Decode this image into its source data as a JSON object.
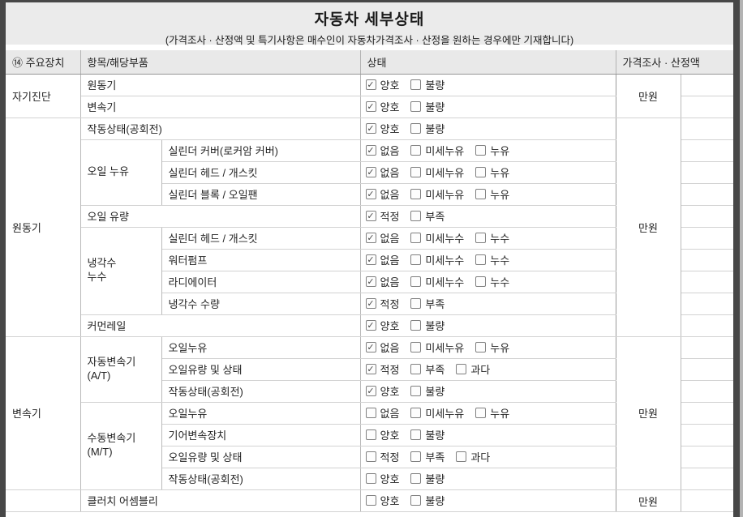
{
  "title": "자동차 세부상태",
  "subtitle": "(가격조사 · 산정액 및 특기사항은 매수인이 자동차가격조사 · 산정을 원하는 경우에만 기재합니다)",
  "colors": {
    "outer_border": "#474747",
    "band_bg": "#ebebeb",
    "grid_line": "#d2d2d2"
  },
  "table": {
    "header": {
      "device": "⑭ 주요장치",
      "item": "항목/해당부품",
      "status": "상태",
      "price": "가격조사 · 산정액"
    },
    "price_unit": "만원",
    "sections": [
      {
        "name": "자기진단",
        "price": "만원",
        "rows": [
          {
            "item": "원동기",
            "options": [
              {
                "label": "양호",
                "checked": true
              },
              {
                "label": "불량",
                "checked": false
              }
            ]
          },
          {
            "item": "변속기",
            "options": [
              {
                "label": "양호",
                "checked": true
              },
              {
                "label": "불량",
                "checked": false
              }
            ]
          }
        ]
      },
      {
        "name": "원동기",
        "price": "만원",
        "rows": [
          {
            "item": "작동상태(공회전)",
            "options": [
              {
                "label": "양호",
                "checked": true
              },
              {
                "label": "불량",
                "checked": false
              }
            ]
          },
          {
            "group": "오일 누유",
            "item": "실린더 커버(로커암 커버)",
            "options": [
              {
                "label": "없음",
                "checked": true
              },
              {
                "label": "미세누유",
                "checked": false
              },
              {
                "label": "누유",
                "checked": false
              }
            ]
          },
          {
            "group": "오일 누유",
            "item": "실린더 헤드 / 개스킷",
            "options": [
              {
                "label": "없음",
                "checked": true
              },
              {
                "label": "미세누유",
                "checked": false
              },
              {
                "label": "누유",
                "checked": false
              }
            ]
          },
          {
            "group": "오일 누유",
            "item": "실린더 블록 / 오일팬",
            "options": [
              {
                "label": "없음",
                "checked": true
              },
              {
                "label": "미세누유",
                "checked": false
              },
              {
                "label": "누유",
                "checked": false
              }
            ]
          },
          {
            "item": "오일 유량",
            "options": [
              {
                "label": "적정",
                "checked": true
              },
              {
                "label": "부족",
                "checked": false
              }
            ]
          },
          {
            "group": "냉각수\n누수",
            "item": "실린더 헤드 / 개스킷",
            "options": [
              {
                "label": "없음",
                "checked": true
              },
              {
                "label": "미세누수",
                "checked": false
              },
              {
                "label": "누수",
                "checked": false
              }
            ]
          },
          {
            "group": "냉각수\n누수",
            "item": "워터펌프",
            "options": [
              {
                "label": "없음",
                "checked": true
              },
              {
                "label": "미세누수",
                "checked": false
              },
              {
                "label": "누수",
                "checked": false
              }
            ]
          },
          {
            "group": "냉각수\n누수",
            "item": "라디에이터",
            "options": [
              {
                "label": "없음",
                "checked": true
              },
              {
                "label": "미세누수",
                "checked": false
              },
              {
                "label": "누수",
                "checked": false
              }
            ]
          },
          {
            "group": "냉각수\n누수",
            "item": "냉각수 수량",
            "options": [
              {
                "label": "적정",
                "checked": true
              },
              {
                "label": "부족",
                "checked": false
              }
            ]
          },
          {
            "item": "커먼레일",
            "options": [
              {
                "label": "양호",
                "checked": true
              },
              {
                "label": "불량",
                "checked": false
              }
            ]
          }
        ]
      },
      {
        "name": "변속기",
        "price": "만원",
        "rows": [
          {
            "group": "자동변속기\n(A/T)",
            "item": "오일누유",
            "options": [
              {
                "label": "없음",
                "checked": true
              },
              {
                "label": "미세누유",
                "checked": false
              },
              {
                "label": "누유",
                "checked": false
              }
            ]
          },
          {
            "group": "자동변속기\n(A/T)",
            "item": "오일유량 및 상태",
            "options": [
              {
                "label": "적정",
                "checked": true
              },
              {
                "label": "부족",
                "checked": false
              },
              {
                "label": "과다",
                "checked": false
              }
            ]
          },
          {
            "group": "자동변속기\n(A/T)",
            "item": "작동상태(공회전)",
            "options": [
              {
                "label": "양호",
                "checked": true
              },
              {
                "label": "불량",
                "checked": false
              }
            ]
          },
          {
            "group": "수동변속기\n(M/T)",
            "item": "오일누유",
            "options": [
              {
                "label": "없음",
                "checked": false
              },
              {
                "label": "미세누유",
                "checked": false
              },
              {
                "label": "누유",
                "checked": false
              }
            ]
          },
          {
            "group": "수동변속기\n(M/T)",
            "item": "기어변속장치",
            "options": [
              {
                "label": "양호",
                "checked": false
              },
              {
                "label": "불량",
                "checked": false
              }
            ]
          },
          {
            "group": "수동변속기\n(M/T)",
            "item": "오일유량 및 상태",
            "options": [
              {
                "label": "적정",
                "checked": false
              },
              {
                "label": "부족",
                "checked": false
              },
              {
                "label": "과다",
                "checked": false
              }
            ]
          },
          {
            "group": "수동변속기\n(M/T)",
            "item": "작동상태(공회전)",
            "options": [
              {
                "label": "양호",
                "checked": false
              },
              {
                "label": "불량",
                "checked": false
              }
            ]
          }
        ]
      },
      {
        "name": "",
        "price": "만원",
        "price_at_top": true,
        "rows": [
          {
            "item": "클러치 어셈블리",
            "options": [
              {
                "label": "양호",
                "checked": false
              },
              {
                "label": "불량",
                "checked": false
              }
            ]
          }
        ]
      }
    ]
  }
}
